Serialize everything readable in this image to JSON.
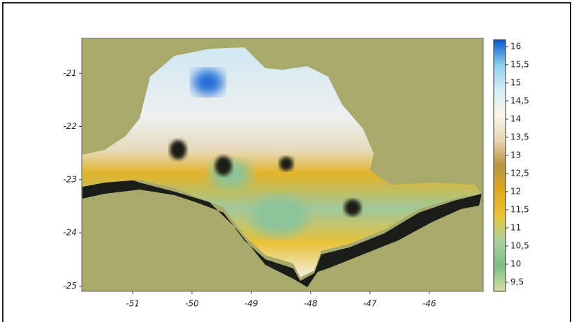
{
  "chart_data": {
    "type": "surface",
    "background": "#a8aa6c",
    "xlim": [
      -51.86,
      -45.09
    ],
    "xticks": [
      -51,
      -50,
      -49,
      -48,
      -47,
      -46
    ],
    "ylim": [
      -25.1,
      -20.34
    ],
    "yticks": [
      -21,
      -22,
      -23,
      -24,
      -25
    ],
    "colorbar": {
      "lim": [
        9.25,
        16.19
      ],
      "colors": [
        "#d9dea2",
        "#7cbf86",
        "#a9d0a0",
        "#e8c535",
        "#e0a820",
        "#b89440",
        "#e6d6b4",
        "#fbf7ec",
        "#d6eef6",
        "#8cd0ec",
        "#0a58d0"
      ],
      "ticks": [
        {
          "value": 9.5,
          "label": "9,5"
        },
        10,
        {
          "value": 10.5,
          "label": "10,5"
        },
        11,
        {
          "value": 11.5,
          "label": "11,5"
        },
        12,
        {
          "value": 12.5,
          "label": "12,5"
        },
        13,
        {
          "value": 13.5,
          "label": "13,5"
        },
        14,
        {
          "value": 14.5,
          "label": "14,5"
        },
        15,
        {
          "value": 15.5,
          "label": "15,5"
        },
        16
      ]
    }
  }
}
